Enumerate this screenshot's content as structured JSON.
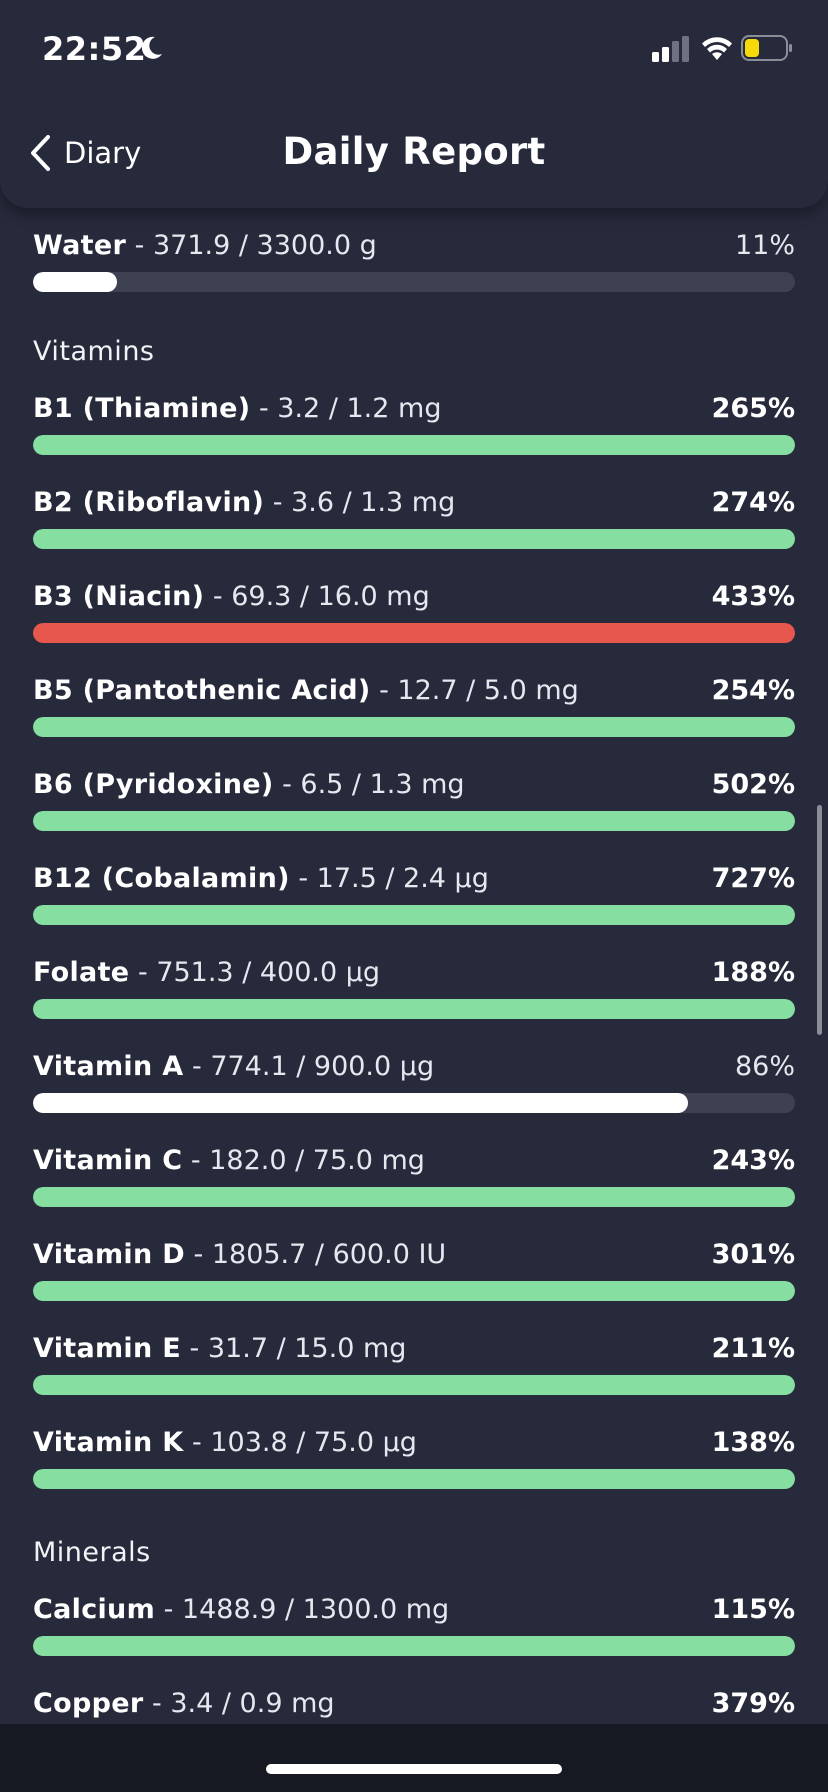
{
  "status_bar": {
    "time": "22:52",
    "icons": [
      "moon-icon",
      "cellular-signal-icon",
      "wifi-icon",
      "battery-icon"
    ],
    "battery_color": "#f5d90a"
  },
  "header": {
    "back_label": "Diary",
    "title": "Daily Report"
  },
  "colors": {
    "background": "#262a3a",
    "track": "#3d4152",
    "green": "#86dea0",
    "red": "#e8574e",
    "white": "#ffffff"
  },
  "water": {
    "name": "Water",
    "amount": " - 371.9 / 3300.0 g",
    "percent": "11%",
    "fill": 0.11,
    "color": "#ffffff"
  },
  "vitamins": {
    "title": "Vitamins",
    "items": [
      {
        "name": "B1 (Thiamine)",
        "amount": " - 3.2 / 1.2 mg",
        "percent": "265%",
        "fill": 1.0,
        "color": "#86dea0"
      },
      {
        "name": "B2 (Riboflavin)",
        "amount": " - 3.6 / 1.3 mg",
        "percent": "274%",
        "fill": 1.0,
        "color": "#86dea0"
      },
      {
        "name": "B3 (Niacin)",
        "amount": " - 69.3 / 16.0 mg",
        "percent": "433%",
        "fill": 1.0,
        "color": "#e8574e"
      },
      {
        "name": "B5 (Pantothenic Acid)",
        "amount": " - 12.7 / 5.0 mg",
        "percent": "254%",
        "fill": 1.0,
        "color": "#86dea0"
      },
      {
        "name": "B6 (Pyridoxine)",
        "amount": " - 6.5 / 1.3 mg",
        "percent": "502%",
        "fill": 1.0,
        "color": "#86dea0"
      },
      {
        "name": "B12 (Cobalamin)",
        "amount": " - 17.5 / 2.4 µg",
        "percent": "727%",
        "fill": 1.0,
        "color": "#86dea0"
      },
      {
        "name": "Folate",
        "amount": " - 751.3 / 400.0 µg",
        "percent": "188%",
        "fill": 1.0,
        "color": "#86dea0"
      },
      {
        "name": "Vitamin A",
        "amount": " - 774.1 / 900.0 µg",
        "percent": "86%",
        "fill": 0.86,
        "color": "#ffffff"
      },
      {
        "name": "Vitamin C",
        "amount": " - 182.0 / 75.0 mg",
        "percent": "243%",
        "fill": 1.0,
        "color": "#86dea0"
      },
      {
        "name": "Vitamin D",
        "amount": " - 1805.7 / 600.0 IU",
        "percent": "301%",
        "fill": 1.0,
        "color": "#86dea0"
      },
      {
        "name": "Vitamin E",
        "amount": " - 31.7 / 15.0 mg",
        "percent": "211%",
        "fill": 1.0,
        "color": "#86dea0"
      },
      {
        "name": "Vitamin K",
        "amount": " - 103.8 / 75.0 µg",
        "percent": "138%",
        "fill": 1.0,
        "color": "#86dea0"
      }
    ]
  },
  "minerals": {
    "title": "Minerals",
    "items": [
      {
        "name": "Calcium",
        "amount": " - 1488.9 / 1300.0 mg",
        "percent": "115%",
        "fill": 1.0,
        "color": "#86dea0"
      },
      {
        "name": "Copper",
        "amount": " - 3.4 / 0.9 mg",
        "percent": "379%",
        "fill": 1.0,
        "color": "#86dea0"
      }
    ]
  }
}
